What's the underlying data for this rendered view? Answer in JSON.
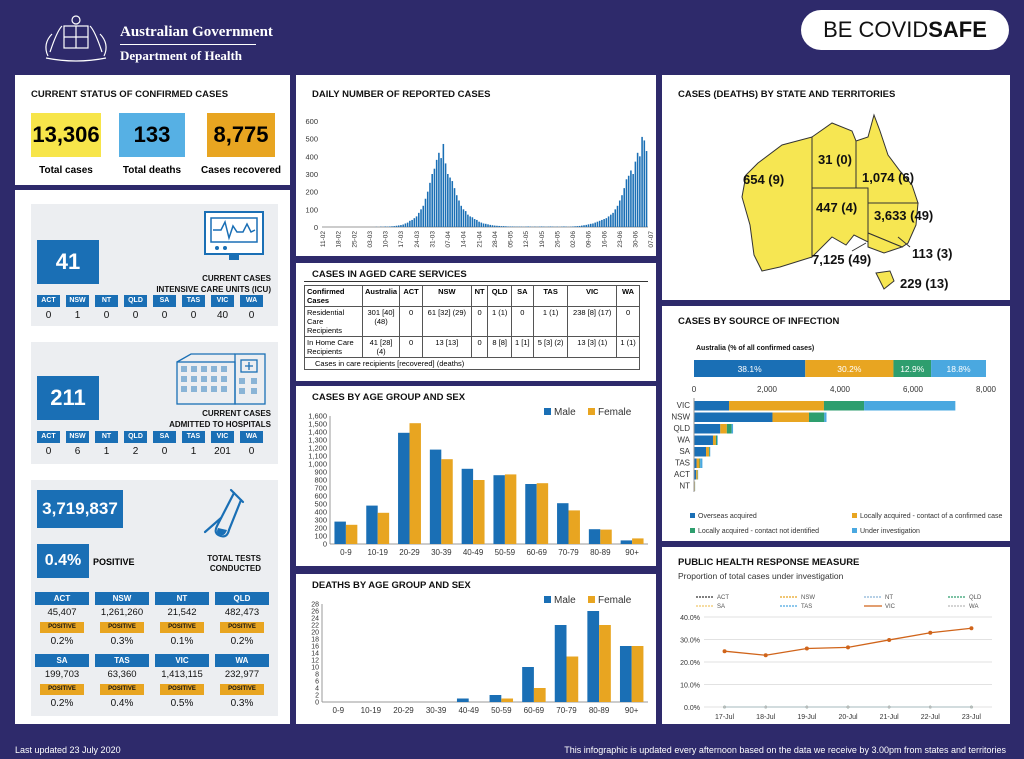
{
  "header": {
    "gov_line1": "Australian Government",
    "gov_line2": "Department of Health",
    "covidsafe_be": "BE ",
    "covidsafe_covid": "COVID",
    "covidsafe_safe": "SAFE"
  },
  "status": {
    "title": "CURRENT STATUS OF CONFIRMED CASES",
    "total_cases": "13,306",
    "total_cases_label": "Total cases",
    "total_deaths": "133",
    "total_deaths_label": "Total deaths",
    "recovered": "8,775",
    "recovered_label": "Cases recovered"
  },
  "icu": {
    "count": "41",
    "label_line1": "CURRENT CASES",
    "label_line2": "INTENSIVE CARE UNITS (ICU)",
    "states": [
      "ACT",
      "NSW",
      "NT",
      "QLD",
      "SA",
      "TAS",
      "VIC",
      "WA"
    ],
    "values": [
      "0",
      "1",
      "0",
      "0",
      "0",
      "0",
      "40",
      "0"
    ]
  },
  "hospital": {
    "count": "211",
    "label_line1": "CURRENT CASES",
    "label_line2": "ADMITTED TO HOSPITALS",
    "states": [
      "ACT",
      "NSW",
      "NT",
      "QLD",
      "SA",
      "TAS",
      "VIC",
      "WA"
    ],
    "values": [
      "0",
      "6",
      "1",
      "2",
      "0",
      "1",
      "201",
      "0"
    ]
  },
  "tests": {
    "total": "3,719,837",
    "positive_pct": "0.4%",
    "positive_label": "POSITIVE",
    "label_line1": "TOTAL TESTS",
    "label_line2": "CONDUCTED",
    "positive_tag": "POSITIVE",
    "rows": [
      {
        "states": [
          "ACT",
          "NSW",
          "NT",
          "QLD"
        ],
        "values": [
          "45,407",
          "1,261,260",
          "21,542",
          "482,473"
        ],
        "pcts": [
          "0.2%",
          "0.3%",
          "0.1%",
          "0.2%"
        ]
      },
      {
        "states": [
          "SA",
          "TAS",
          "VIC",
          "WA"
        ],
        "values": [
          "199,703",
          "63,360",
          "1,413,115",
          "232,977"
        ],
        "pcts": [
          "0.2%",
          "0.4%",
          "0.5%",
          "0.3%"
        ]
      }
    ]
  },
  "aged_care": {
    "title": "CASES IN AGED CARE SERVICES",
    "col_confirmed": "Confirmed Cases",
    "col_australia": "Australia",
    "states": [
      "ACT",
      "NSW",
      "NT",
      "QLD",
      "SA",
      "TAS",
      "VIC",
      "WA"
    ],
    "rows": [
      {
        "label": "Residential Care Recipients",
        "australia": "301 [40] (48)",
        "values": [
          "0",
          "61 [32] (29)",
          "0",
          "1 (1)",
          "0",
          "1 (1)",
          "238 [8] (17)",
          "0"
        ]
      },
      {
        "label": "In Home Care Recipients",
        "australia": "41 [28] (4)",
        "values": [
          "0",
          "13 [13]",
          "0",
          "8 [8]",
          "1 [1]",
          "5 [3] (2)",
          "13 [3] (1)",
          "1 (1)"
        ]
      }
    ],
    "footnote": "Cases in care recipients [recovered] (deaths)"
  },
  "state_map": {
    "title": "CASES (DEATHS) BY STATE AND TERRITORIES",
    "labels": {
      "WA": "654 (9)",
      "NT": "31 (0)",
      "QLD": "1,074 (6)",
      "SA": "447 (4)",
      "NSW": "3,633 (49)",
      "ACT": "113 (3)",
      "VIC": "7,125 (49)",
      "TAS": "229 (13)"
    }
  },
  "footer": {
    "updated": "Last updated 23 July 2020",
    "note": "This infographic is updated every afternoon based on the data we receive by 3.00pm from states and territories"
  },
  "chart_data": [
    {
      "id": "daily",
      "type": "bar",
      "title": "DAILY NUMBER OF REPORTED CASES",
      "ylim": [
        0,
        600
      ],
      "yticks": [
        0,
        100,
        200,
        300,
        400,
        500,
        600
      ],
      "x_tick_labels": [
        "11-02",
        "18-02",
        "25-02",
        "03-03",
        "10-03",
        "17-03",
        "24-03",
        "31-03",
        "07-04",
        "14-04",
        "21-04",
        "28-04",
        "05-05",
        "12-05",
        "19-05",
        "26-05",
        "02-06",
        "09-06",
        "16-06",
        "23-06",
        "30-06",
        "07-07",
        "14-07",
        "21-07"
      ],
      "color": "#1a6fb5",
      "start_date": "2020-02-11",
      "values": [
        0,
        0,
        0,
        0,
        0,
        0,
        0,
        0,
        0,
        0,
        0,
        0,
        0,
        0,
        0,
        0,
        0,
        0,
        0,
        0,
        0,
        0,
        0,
        0,
        1,
        0,
        2,
        1,
        3,
        2,
        3,
        4,
        5,
        7,
        9,
        11,
        14,
        20,
        25,
        35,
        40,
        50,
        60,
        80,
        100,
        120,
        160,
        200,
        250,
        300,
        330,
        380,
        420,
        390,
        470,
        360,
        300,
        280,
        260,
        220,
        180,
        150,
        120,
        100,
        90,
        70,
        60,
        55,
        45,
        40,
        30,
        25,
        20,
        18,
        15,
        12,
        10,
        8,
        7,
        6,
        5,
        5,
        4,
        3,
        3,
        3,
        2,
        2,
        2,
        2,
        1,
        2,
        3,
        2,
        1,
        2,
        1,
        2,
        3,
        2,
        1,
        2,
        3,
        2,
        1,
        2,
        1,
        2,
        3,
        2,
        1,
        2,
        3,
        4,
        5,
        6,
        8,
        10,
        12,
        15,
        18,
        20,
        25,
        30,
        35,
        40,
        45,
        50,
        60,
        70,
        80,
        100,
        120,
        150,
        180,
        220,
        270,
        290,
        320,
        300,
        370,
        420,
        400,
        510,
        490,
        430
      ]
    },
    {
      "id": "age_sex",
      "type": "bar",
      "title": "CASES BY AGE GROUP AND SEX",
      "categories": [
        "0-9",
        "10-19",
        "20-29",
        "30-39",
        "40-49",
        "50-59",
        "60-69",
        "70-79",
        "80-89",
        "90+"
      ],
      "series": [
        {
          "name": "Male",
          "color": "#1a6fb5",
          "values": [
            280,
            480,
            1390,
            1180,
            940,
            860,
            750,
            510,
            185,
            45
          ]
        },
        {
          "name": "Female",
          "color": "#e8a521",
          "values": [
            240,
            390,
            1510,
            1060,
            800,
            870,
            760,
            420,
            180,
            70
          ]
        }
      ],
      "ylim": [
        0,
        1600
      ],
      "yticks": [
        0,
        100,
        200,
        300,
        400,
        500,
        600,
        700,
        800,
        900,
        1000,
        1100,
        1200,
        1300,
        1400,
        1500,
        1600
      ],
      "legend": "top-right"
    },
    {
      "id": "deaths_age_sex",
      "type": "bar",
      "title": "DEATHS BY AGE GROUP AND SEX",
      "categories": [
        "0-9",
        "10-19",
        "20-29",
        "30-39",
        "40-49",
        "50-59",
        "60-69",
        "70-79",
        "80-89",
        "90+"
      ],
      "series": [
        {
          "name": "Male",
          "color": "#1a6fb5",
          "values": [
            0,
            0,
            0,
            0,
            1,
            2,
            10,
            22,
            26,
            16
          ]
        },
        {
          "name": "Female",
          "color": "#e8a521",
          "values": [
            0,
            0,
            0,
            0,
            0,
            1,
            4,
            13,
            22,
            16
          ]
        }
      ],
      "ylim": [
        0,
        28
      ],
      "yticks": [
        0,
        2,
        4,
        6,
        8,
        10,
        12,
        14,
        16,
        18,
        20,
        22,
        24,
        26,
        28
      ],
      "legend": "top-right"
    },
    {
      "id": "source",
      "type": "bar",
      "title": "CASES BY SOURCE OF INFECTION",
      "subtitle": "Australia (% of all confirmed cases)",
      "australia_pct": [
        {
          "name": "Overseas acquired",
          "value": 38.1,
          "label": "38.1%",
          "color": "#1a6fb5"
        },
        {
          "name": "Locally acquired - contact of a confirmed case",
          "value": 30.2,
          "label": "30.2%",
          "color": "#e8a521"
        },
        {
          "name": "Locally acquired - contact not identified",
          "value": 12.9,
          "label": "12.9%",
          "color": "#2e9e6e"
        },
        {
          "name": "Under investigation",
          "value": 18.8,
          "label": "18.8%",
          "color": "#4aa8e0"
        }
      ],
      "categories": [
        "VIC",
        "NSW",
        "QLD",
        "WA",
        "SA",
        "TAS",
        "ACT",
        "NT"
      ],
      "series": [
        {
          "name": "Overseas acquired",
          "color": "#1a6fb5",
          "values": [
            960,
            2150,
            720,
            520,
            330,
            70,
            60,
            20
          ]
        },
        {
          "name": "Locally acquired - contact of a confirmed case",
          "color": "#e8a521",
          "values": [
            2600,
            1000,
            180,
            80,
            80,
            80,
            40,
            8
          ]
        },
        {
          "name": "Locally acquired - contact not identified",
          "color": "#2e9e6e",
          "values": [
            1100,
            420,
            130,
            30,
            20,
            20,
            8,
            2
          ]
        },
        {
          "name": "Under investigation",
          "color": "#4aa8e0",
          "values": [
            2500,
            60,
            40,
            20,
            15,
            60,
            5,
            1
          ]
        }
      ],
      "xlim": [
        0,
        8000
      ],
      "xticks": [
        0,
        2000,
        4000,
        6000,
        8000
      ],
      "xtick_labels": [
        "0",
        "2,000",
        "4,000",
        "6,000",
        "8,000"
      ],
      "legend": "bottom"
    },
    {
      "id": "public_health",
      "type": "line",
      "title": "PUBLIC HEALTH RESPONSE MEASURE",
      "subtitle": "Proportion of total cases under investigation",
      "x": [
        "17-Jul",
        "18-Jul",
        "19-Jul",
        "20-Jul",
        "21-Jul",
        "22-Jul",
        "23-Jul"
      ],
      "series": [
        {
          "name": "ACT",
          "color": "#333333",
          "values": [
            0,
            0,
            0,
            0,
            0,
            0,
            0
          ]
        },
        {
          "name": "NSW",
          "color": "#e8a521",
          "values": [
            0,
            0,
            0,
            0,
            0,
            0,
            0
          ]
        },
        {
          "name": "NT",
          "color": "#8ab4d6",
          "values": [
            0,
            0,
            0,
            0,
            0,
            0,
            0
          ]
        },
        {
          "name": "QLD",
          "color": "#2e9e6e",
          "values": [
            0,
            0,
            0,
            0,
            0,
            0,
            0
          ]
        },
        {
          "name": "SA",
          "color": "#f0c86a",
          "values": [
            0,
            0,
            0,
            0,
            0,
            0,
            0
          ]
        },
        {
          "name": "TAS",
          "color": "#4aa8e0",
          "values": [
            0,
            0,
            0,
            0,
            0,
            0,
            0
          ]
        },
        {
          "name": "VIC",
          "color": "#d0641a",
          "values": [
            24.8,
            23.0,
            26.0,
            26.5,
            29.8,
            33.0,
            35.0
          ]
        },
        {
          "name": "WA",
          "color": "#bbbbbb",
          "values": [
            0,
            0,
            0,
            0,
            0,
            0,
            0
          ]
        }
      ],
      "ylim": [
        0,
        40
      ],
      "yticks": [
        0,
        10,
        20,
        30,
        40
      ],
      "ytick_labels": [
        "0.0%",
        "10.0%",
        "20.0%",
        "30.0%",
        "40.0%"
      ],
      "legend": "top"
    }
  ]
}
